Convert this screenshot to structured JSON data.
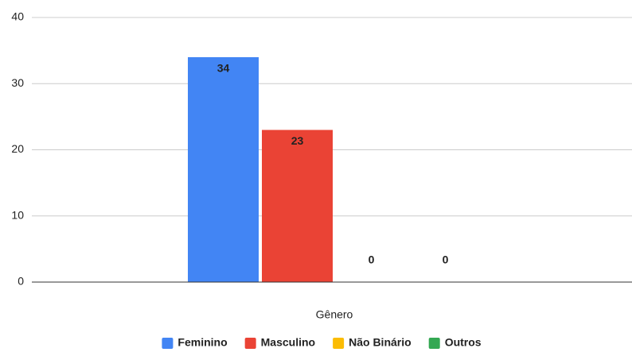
{
  "chart_data": {
    "type": "bar",
    "categories": [
      "Gênero"
    ],
    "series": [
      {
        "name": "Feminino",
        "color": "#4285f4",
        "values": [
          34
        ]
      },
      {
        "name": "Masculino",
        "color": "#ea4335",
        "values": [
          23
        ]
      },
      {
        "name": "Não Binário",
        "color": "#fbbc04",
        "values": [
          0
        ]
      },
      {
        "name": "Outros",
        "color": "#34a853",
        "values": [
          0
        ]
      }
    ],
    "ylim": [
      0,
      40
    ],
    "yticks": [
      0,
      10,
      20,
      30,
      40
    ],
    "grid": true,
    "legend": "bottom",
    "data_labels": true
  }
}
